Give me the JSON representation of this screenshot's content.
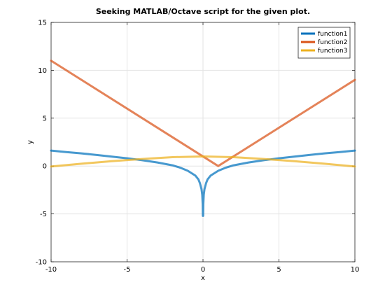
{
  "chart_data": {
    "type": "line",
    "title": "Seeking MATLAB/Octave script for the given plot.",
    "xlabel": "x",
    "ylabel": "y",
    "xlim": [
      -10,
      10
    ],
    "ylim": [
      -10,
      15
    ],
    "xticks": [
      -10,
      -5,
      0,
      5,
      10
    ],
    "yticks": [
      -10,
      -5,
      0,
      5,
      10,
      15
    ],
    "grid": true,
    "legend_position": "top-right",
    "series": [
      {
        "name": "function1",
        "color": "#0072BD",
        "x": [
          -10,
          -9,
          -8,
          -7,
          -6,
          -5,
          -4,
          -3,
          -2,
          -1.5,
          -1,
          -0.5,
          -0.3,
          -0.2,
          -0.1,
          -0.05,
          -0.02,
          -0.01,
          0.01,
          0.02,
          0.05,
          0.1,
          0.2,
          0.3,
          0.5,
          1,
          1.5,
          2,
          3,
          4,
          5,
          6,
          7,
          8,
          9,
          10
        ],
        "y": [
          1.61,
          1.46,
          1.32,
          1.16,
          0.98,
          0.81,
          0.61,
          0.37,
          0.07,
          -0.17,
          -0.5,
          -1.0,
          -1.4,
          -1.8,
          -2.4,
          -3.0,
          -4.0,
          -5.2,
          -5.2,
          -4.0,
          -3.0,
          -2.4,
          -1.8,
          -1.4,
          -1.0,
          -0.5,
          -0.17,
          0.07,
          0.37,
          0.61,
          0.81,
          0.98,
          1.16,
          1.32,
          1.46,
          1.61
        ]
      },
      {
        "name": "function2",
        "color": "#D95319",
        "x": [
          -10,
          1,
          10
        ],
        "y": [
          11,
          0,
          9
        ]
      },
      {
        "name": "function3",
        "color": "#EDB120",
        "x": [
          -10,
          -8,
          -6,
          -4,
          -2,
          0,
          2,
          4,
          6,
          8,
          10
        ],
        "y": [
          -0.05,
          0.24,
          0.51,
          0.74,
          0.93,
          1.0,
          0.93,
          0.74,
          0.51,
          0.24,
          -0.05
        ]
      }
    ]
  }
}
